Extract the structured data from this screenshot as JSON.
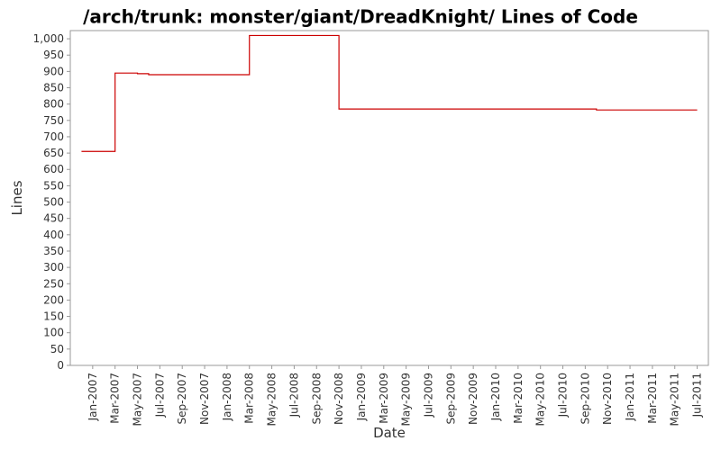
{
  "chart_data": {
    "type": "line",
    "title": "/arch/trunk: monster/giant/DreadKnight/ Lines of Code",
    "x_label": "Date",
    "y_label": "Lines",
    "x": [
      "2006-12",
      "2007-03",
      "2007-03",
      "2007-05",
      "2007-05",
      "2007-06",
      "2007-06",
      "2008-03",
      "2008-03",
      "2008-11",
      "2008-11",
      "2010-10",
      "2010-10",
      "2011-07"
    ],
    "series": [
      {
        "color": "#cc0000",
        "values": [
          655,
          655,
          895,
          895,
          893,
          893,
          890,
          890,
          1010,
          1010,
          785,
          785,
          782,
          782
        ]
      }
    ],
    "xlim": [
      "2006-11",
      "2011-08"
    ],
    "xticks": [
      {
        "value": "2007-01",
        "label": "Jan-2007"
      },
      {
        "value": "2007-03",
        "label": "Mar-2007"
      },
      {
        "value": "2007-05",
        "label": "May-2007"
      },
      {
        "value": "2007-07",
        "label": "Jul-2007"
      },
      {
        "value": "2007-09",
        "label": "Sep-2007"
      },
      {
        "value": "2007-11",
        "label": "Nov-2007"
      },
      {
        "value": "2008-01",
        "label": "Jan-2008"
      },
      {
        "value": "2008-03",
        "label": "Mar-2008"
      },
      {
        "value": "2008-05",
        "label": "May-2008"
      },
      {
        "value": "2008-07",
        "label": "Jul-2008"
      },
      {
        "value": "2008-09",
        "label": "Sep-2008"
      },
      {
        "value": "2008-11",
        "label": "Nov-2008"
      },
      {
        "value": "2009-01",
        "label": "Jan-2009"
      },
      {
        "value": "2009-03",
        "label": "Mar-2009"
      },
      {
        "value": "2009-05",
        "label": "May-2009"
      },
      {
        "value": "2009-07",
        "label": "Jul-2009"
      },
      {
        "value": "2009-09",
        "label": "Sep-2009"
      },
      {
        "value": "2009-11",
        "label": "Nov-2009"
      },
      {
        "value": "2010-01",
        "label": "Jan-2010"
      },
      {
        "value": "2010-03",
        "label": "Mar-2010"
      },
      {
        "value": "2010-05",
        "label": "May-2010"
      },
      {
        "value": "2010-07",
        "label": "Jul-2010"
      },
      {
        "value": "2010-09",
        "label": "Sep-2010"
      },
      {
        "value": "2010-11",
        "label": "Nov-2010"
      },
      {
        "value": "2011-01",
        "label": "Jan-2011"
      },
      {
        "value": "2011-03",
        "label": "Mar-2011"
      },
      {
        "value": "2011-05",
        "label": "May-2011"
      },
      {
        "value": "2011-07",
        "label": "Jul-2011"
      }
    ],
    "ylim": [
      0,
      1025
    ],
    "yticks": [
      0,
      50,
      100,
      150,
      200,
      250,
      300,
      350,
      400,
      450,
      500,
      550,
      600,
      650,
      700,
      750,
      800,
      850,
      900,
      950,
      {
        "value": 1000,
        "label": "1,000"
      }
    ]
  }
}
